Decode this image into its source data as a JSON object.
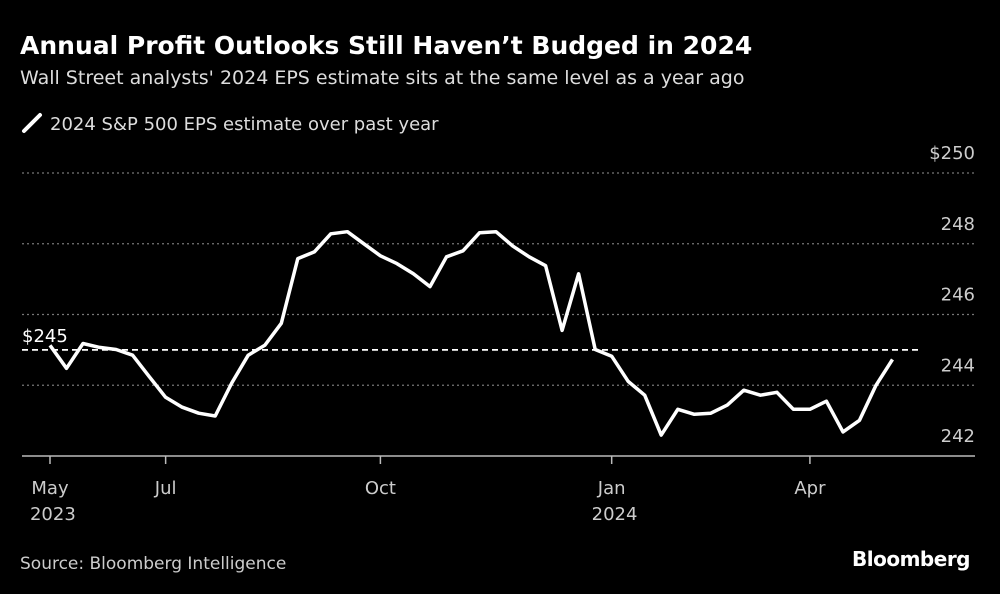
{
  "chart_data": {
    "type": "line",
    "title": "Annual Profit Outlooks Still Haven’t Budged in 2024",
    "subtitle": "Wall Street analysts' 2024 EPS estimate sits at the same level as a year ago",
    "source": "Source: Bloomberg Intelligence",
    "brand": "Bloomberg",
    "categories": [
      "May 2023",
      null,
      null,
      null,
      null,
      null,
      null,
      "Jul",
      null,
      null,
      null,
      null,
      null,
      null,
      null,
      null,
      null,
      null,
      null,
      null,
      "Oct",
      null,
      null,
      null,
      null,
      null,
      null,
      null,
      null,
      null,
      null,
      null,
      null,
      null,
      "Jan 2024",
      null,
      null,
      null,
      null,
      null,
      null,
      null,
      null,
      null,
      null,
      null,
      "Apr",
      null,
      null,
      null,
      null,
      null
    ],
    "series": [
      {
        "name": "2024 S&P 500 EPS estimate over past year",
        "color": "#ffffff",
        "values": [
          245.13,
          244.48,
          245.18,
          245.07,
          245.01,
          244.85,
          244.25,
          243.66,
          243.38,
          243.21,
          243.13,
          244.06,
          244.85,
          245.13,
          245.75,
          247.58,
          247.77,
          248.28,
          248.34,
          248.0,
          247.66,
          247.44,
          247.15,
          246.79,
          247.63,
          247.8,
          248.31,
          248.34,
          247.94,
          247.63,
          247.38,
          245.55,
          247.15,
          245.01,
          244.82,
          244.11,
          243.72,
          242.59,
          243.32,
          243.18,
          243.21,
          243.44,
          243.86,
          243.72,
          243.8,
          243.32,
          243.32,
          243.55,
          242.68,
          243.01,
          244.0,
          244.73
        ]
      }
    ],
    "reference": {
      "value": 245,
      "label": "$245"
    },
    "ylim": [
      242,
      250
    ],
    "yticks": [
      242,
      244,
      246,
      248,
      {
        "value": 250,
        "label": "$250"
      }
    ],
    "grid": true
  }
}
